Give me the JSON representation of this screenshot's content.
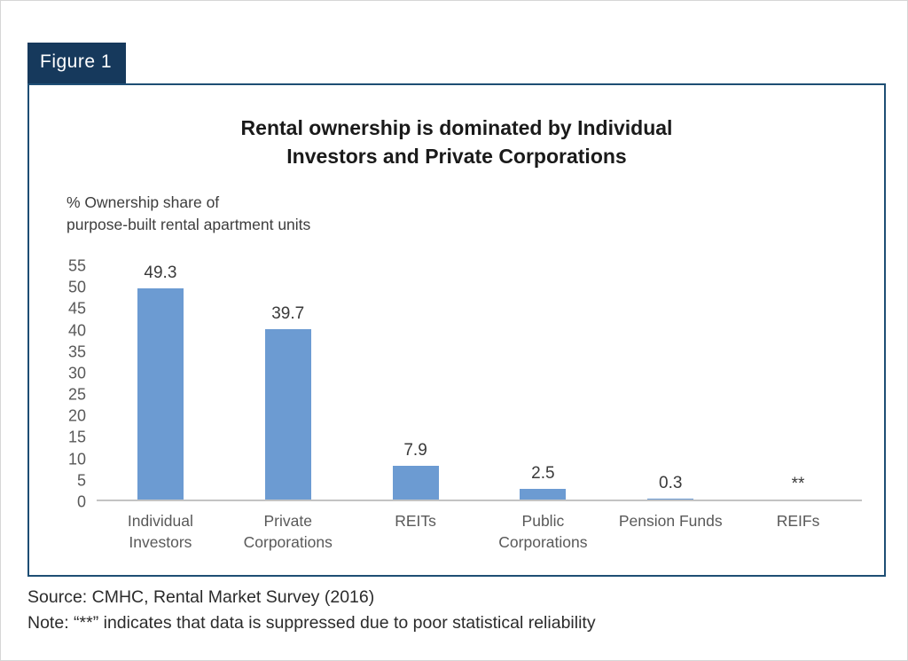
{
  "figure_label": "Figure 1",
  "chart_data": {
    "type": "bar",
    "title": "Rental ownership is dominated by Individual Investors and Private Corporations",
    "title_lines": [
      "Rental ownership is dominated by Individual",
      "Investors and Private Corporations"
    ],
    "unit_label_lines": [
      "% Ownership share of",
      "purpose-built rental apartment units"
    ],
    "categories": [
      "Individual Investors",
      "Private Corporations",
      "REITs",
      "Public Corporations",
      "Pension Funds",
      "REIFs"
    ],
    "values": [
      49.3,
      39.7,
      7.9,
      2.5,
      0.3,
      null
    ],
    "value_labels": [
      "49.3",
      "39.7",
      "7.9",
      "2.5",
      "0.3",
      "**"
    ],
    "xlabel": "",
    "ylabel": "% Ownership share of purpose-built rental apartment units",
    "ylim": [
      0,
      55
    ],
    "ytick_step": 5,
    "grid": false,
    "legend": "none",
    "bar_color": "#6c9bd2"
  },
  "footer": {
    "source": "Source: CMHC, Rental Market Survey (2016)",
    "note": "Note: “**” indicates that data is suppressed due to poor statistical reliability"
  },
  "colors": {
    "tab_background": "#16395c",
    "tab_text": "#ffffff",
    "panel_border": "#1e4e74",
    "bar": "#6c9bd2",
    "axis_line": "#c3c3c3",
    "axis_text": "#595959"
  }
}
